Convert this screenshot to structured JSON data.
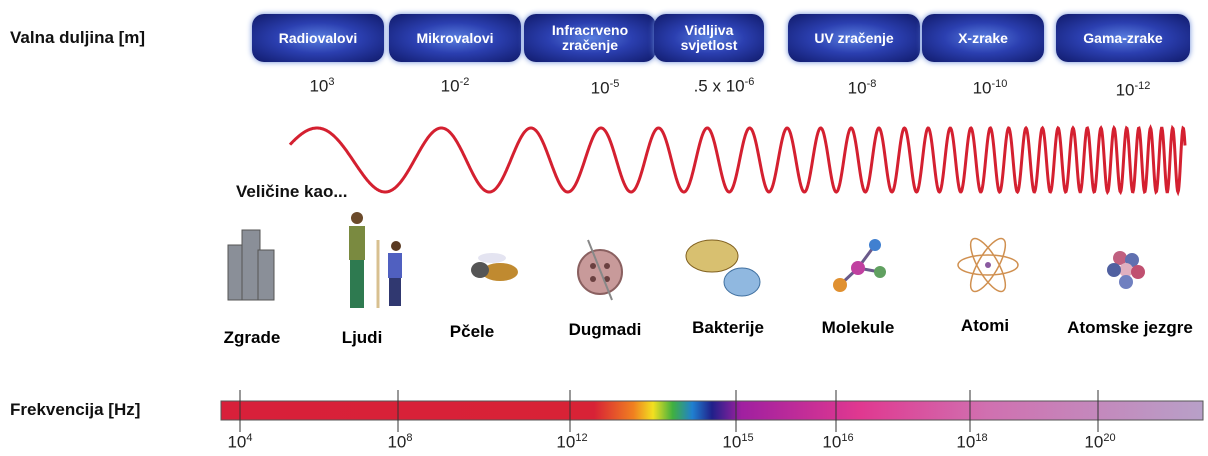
{
  "wavelength": {
    "label": "Valna duljina [m]",
    "bands": [
      {
        "name": "Radiovalovi",
        "base": "10",
        "exp": "3"
      },
      {
        "name": "Mikrovalovi",
        "base": "10",
        "exp": "-2"
      },
      {
        "name": "Infracrveno zračenje",
        "base": "10",
        "exp": "-5"
      },
      {
        "name": "Vidljiva svjetlost",
        "base": ".5 x 10",
        "exp": "-6"
      },
      {
        "name": "UV zračenje",
        "base": "10",
        "exp": "-8"
      },
      {
        "name": "X-zrake",
        "base": "10",
        "exp": "-10"
      },
      {
        "name": "Gama-zrake",
        "base": "10",
        "exp": "-12"
      }
    ]
  },
  "sizes": {
    "label": "Veličine kao...",
    "items": [
      "Zgrade",
      "Ljudi",
      "Pčele",
      "Dugmadi",
      "Bakterije",
      "Molekule",
      "Atomi",
      "Atomske jezgre"
    ]
  },
  "frequency": {
    "label": "Frekvencija [Hz]",
    "ticks": [
      {
        "base": "10",
        "exp": "4"
      },
      {
        "base": "10",
        "exp": "8"
      },
      {
        "base": "10",
        "exp": "12"
      },
      {
        "base": "10",
        "exp": "15"
      },
      {
        "base": "10",
        "exp": "16"
      },
      {
        "base": "10",
        "exp": "18"
      },
      {
        "base": "10",
        "exp": "20"
      }
    ]
  }
}
